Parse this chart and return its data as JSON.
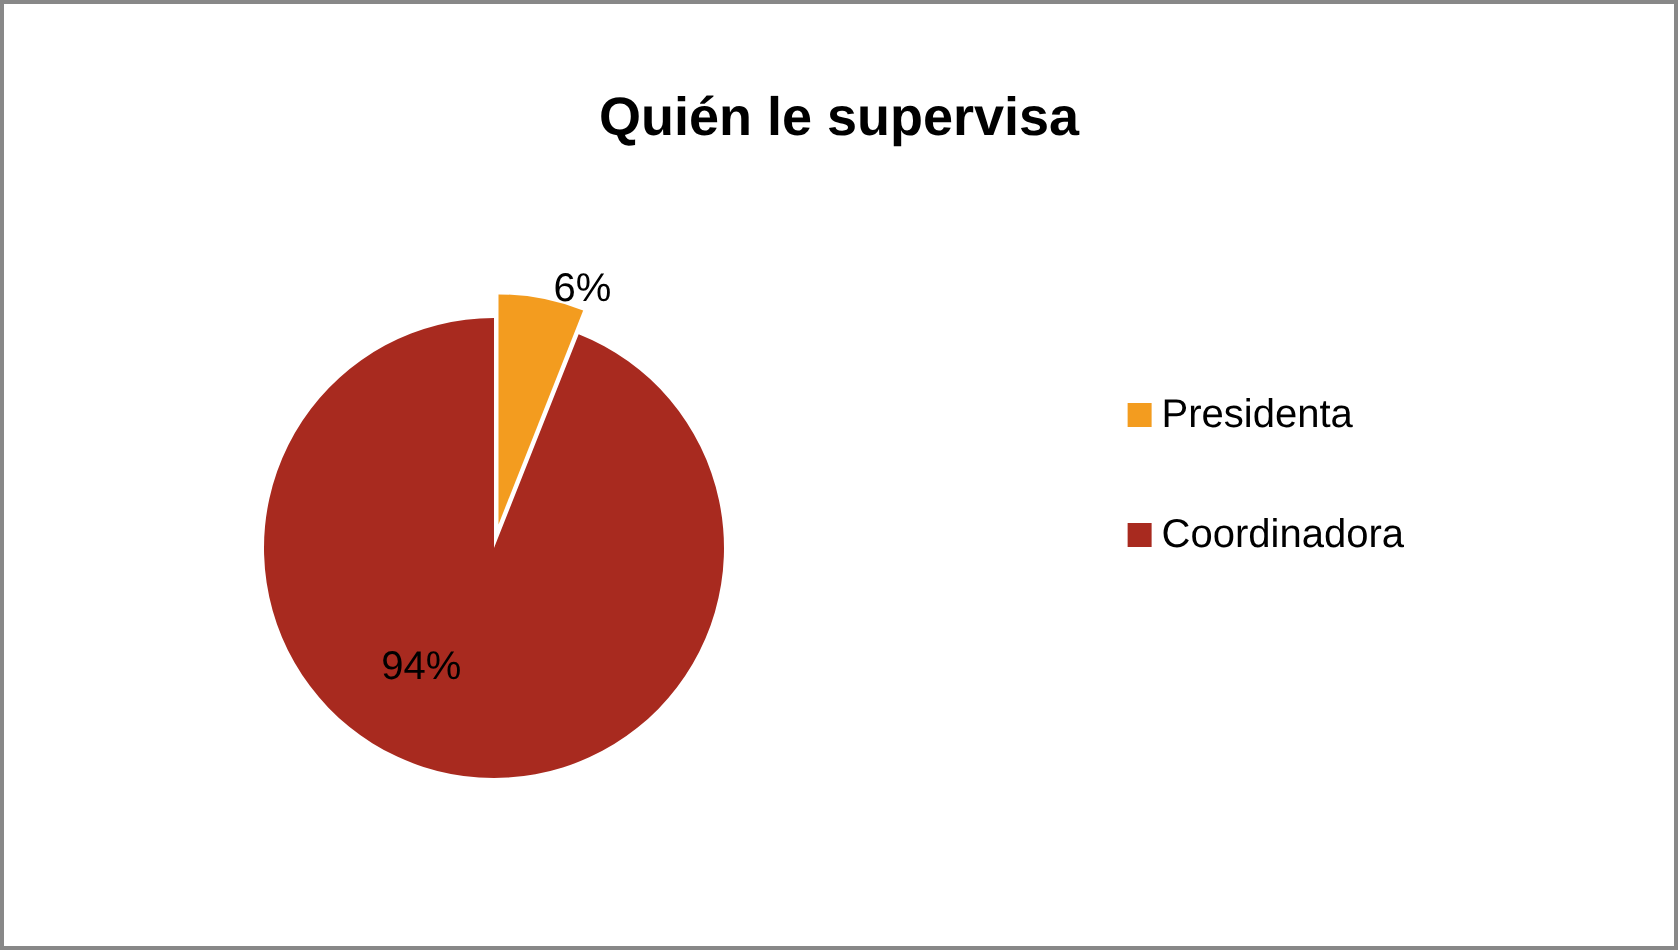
{
  "chart_data": {
    "type": "pie",
    "title": "Quién le supervisa",
    "categories": [
      "Presidenta",
      "Coordinadora"
    ],
    "values": [
      6,
      94
    ],
    "colors": [
      "#f39c1f",
      "#a82a1f"
    ],
    "value_labels": [
      "6%",
      "94%"
    ],
    "legend": "right"
  }
}
